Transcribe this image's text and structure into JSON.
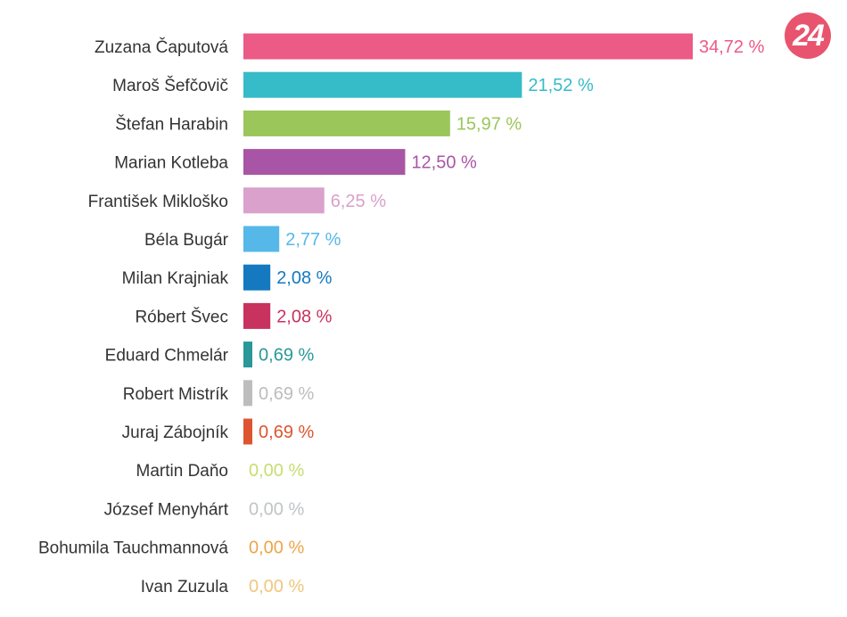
{
  "logo": {
    "text": "24",
    "color": "#e8546e"
  },
  "chart_data": {
    "type": "bar",
    "orientation": "horizontal",
    "title": "",
    "xlabel": "",
    "ylabel": "",
    "xlim": [
      0,
      34.72
    ],
    "grid": false,
    "legend": "none",
    "categories": [
      "Zuzana Čaputová",
      "Maroš Šefčovič",
      "Štefan Harabin",
      "Marian Kotleba",
      "František Mikloško",
      "Béla Bugár",
      "Milan Krajniak",
      "Róbert Švec",
      "Eduard Chmelár",
      "Robert Mistrík",
      "Juraj Zábojník",
      "Martin Daňo",
      "József Menyhárt",
      "Bohumila Tauchmannová",
      "Ivan Zuzula"
    ],
    "values": [
      34.72,
      21.52,
      15.97,
      12.5,
      6.25,
      2.77,
      2.08,
      2.08,
      0.69,
      0.69,
      0.69,
      0.0,
      0.0,
      0.0,
      0.0
    ],
    "value_labels": [
      "34,72 %",
      "21,52 %",
      "15,97 %",
      "12,50 %",
      "6,25 %",
      "2,77 %",
      "2,08 %",
      "2,08 %",
      "0,69 %",
      "0,69 %",
      "0,69 %",
      "0,00 %",
      "0,00 %",
      "0,00 %",
      "0,00 %"
    ],
    "colors": [
      "#ec5a86",
      "#35bcc8",
      "#9bc65a",
      "#a955a5",
      "#d9a1cb",
      "#55b8e9",
      "#1479bf",
      "#c8325f",
      "#2a9798",
      "#bdbdbd",
      "#dd5530",
      "#c7dd70",
      "#bfc4c6",
      "#eba64a",
      "#f0c67e"
    ]
  }
}
